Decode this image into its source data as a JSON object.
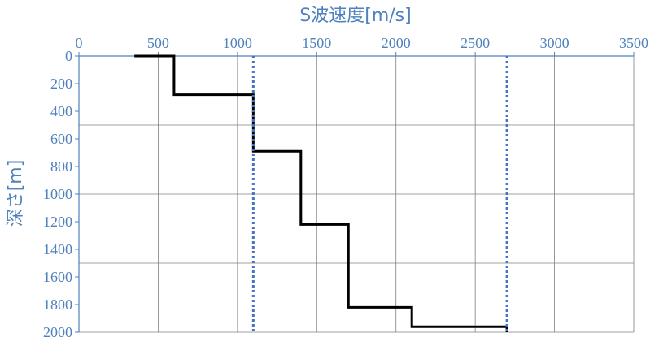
{
  "chart_data": {
    "type": "line",
    "title": "",
    "xlabel": "S波速度[m/s]",
    "ylabel": "深さ[m]",
    "xlim": [
      0,
      3500
    ],
    "ylim": [
      0,
      2000
    ],
    "y_inverted": true,
    "x_axis_position": "top",
    "x_ticks": [
      "0",
      "500",
      "1000",
      "1500",
      "2000",
      "2500",
      "3000",
      "3500"
    ],
    "y_ticks": [
      "0",
      "200",
      "400",
      "600",
      "800",
      "1000",
      "1200",
      "1400",
      "1600",
      "1800",
      "2000"
    ],
    "grid": "major",
    "legend": "none",
    "series": [
      {
        "style": "solid",
        "color": "#000000",
        "points": [
          {
            "x": 350,
            "y": 0
          },
          {
            "x": 600,
            "y": 0
          },
          {
            "x": 600,
            "y": 280
          },
          {
            "x": 1100,
            "y": 280
          },
          {
            "x": 1100,
            "y": 690
          },
          {
            "x": 1400,
            "y": 690
          },
          {
            "x": 1400,
            "y": 1220
          },
          {
            "x": 1700,
            "y": 1220
          },
          {
            "x": 1700,
            "y": 1820
          },
          {
            "x": 2100,
            "y": 1820
          },
          {
            "x": 2100,
            "y": 1960
          },
          {
            "x": 2700,
            "y": 1960
          },
          {
            "x": 2700,
            "y": 2000
          }
        ]
      },
      {
        "style": "dotted",
        "color": "#4472c4",
        "points": [
          {
            "x": 1100,
            "y": 0
          },
          {
            "x": 1100,
            "y": 2000
          }
        ]
      },
      {
        "style": "dotted",
        "color": "#4472c4",
        "points": [
          {
            "x": 2700,
            "y": 0
          },
          {
            "x": 2700,
            "y": 2000
          }
        ]
      }
    ]
  },
  "colors": {
    "axis_text": "#4f81bd",
    "grid": "#808080",
    "axis_line": "#4f81bd"
  }
}
